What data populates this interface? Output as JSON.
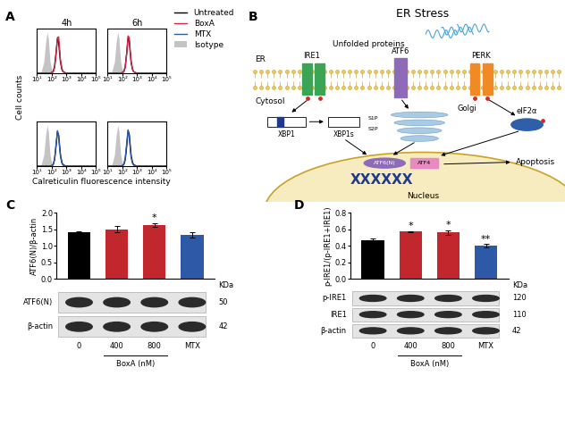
{
  "panel_labels": [
    "A",
    "B",
    "C",
    "D"
  ],
  "histogram_panel": {
    "xlabel": "Calreticulin fluorescence intensity",
    "ylabel": "Cell counts",
    "legend_entries": [
      "Untreated",
      "BoxA",
      "MTX",
      "Isotype"
    ]
  },
  "chart_data": [
    {
      "type": "line",
      "title": "4h",
      "log": "x",
      "tick_labels": "x",
      "x": [
        10,
        20,
        30,
        40,
        50,
        60,
        70,
        80,
        100,
        130,
        160,
        200,
        250,
        300,
        350,
        400,
        500,
        600,
        800,
        1000,
        2000,
        10000,
        100000
      ],
      "xlim": [
        10,
        100000
      ],
      "xticks": [
        {
          "value": 10,
          "label": "10¹"
        },
        {
          "value": 100,
          "label": "10²"
        },
        {
          "value": 1000,
          "label": "10³"
        },
        {
          "value": 10000,
          "label": "10⁴"
        },
        {
          "value": 100000,
          "label": "10⁵"
        }
      ],
      "ylim": [
        0,
        100
      ],
      "series": [
        {
          "name": "Isotype",
          "type": "area",
          "color": "#c4c4c4",
          "values": [
            0,
            3,
            25,
            70,
            92,
            80,
            50,
            25,
            8,
            2,
            0,
            0,
            0,
            0,
            0,
            0,
            0,
            0,
            0,
            0,
            0,
            0,
            0
          ]
        },
        {
          "name": "Untreated",
          "color": "#000000",
          "values": [
            0,
            0,
            0,
            0,
            0,
            0,
            0,
            0,
            1,
            4,
            15,
            45,
            78,
            70,
            45,
            25,
            8,
            3,
            1,
            0,
            0,
            0,
            0
          ]
        },
        {
          "name": "BoxA",
          "color": "#d6284b",
          "values": [
            0,
            0,
            0,
            0,
            0,
            0,
            0,
            0,
            1,
            3,
            12,
            40,
            80,
            82,
            55,
            30,
            10,
            4,
            1,
            0,
            0,
            0,
            0
          ]
        }
      ]
    },
    {
      "type": "line",
      "title": "6h",
      "log": "x",
      "tick_labels": "x",
      "x": [
        10,
        20,
        30,
        40,
        50,
        60,
        70,
        80,
        100,
        130,
        160,
        200,
        250,
        300,
        350,
        400,
        500,
        600,
        800,
        1000,
        2000,
        10000,
        100000
      ],
      "xlim": [
        10,
        100000
      ],
      "xticks": [
        {
          "value": 10,
          "label": "10¹"
        },
        {
          "value": 100,
          "label": "10²"
        },
        {
          "value": 1000,
          "label": "10³"
        },
        {
          "value": 10000,
          "label": "10⁴"
        },
        {
          "value": 100000,
          "label": "10⁵"
        }
      ],
      "ylim": [
        0,
        100
      ],
      "series": [
        {
          "name": "Isotype",
          "type": "area",
          "color": "#c4c4c4",
          "values": [
            0,
            3,
            25,
            70,
            92,
            80,
            50,
            25,
            8,
            2,
            0,
            0,
            0,
            0,
            0,
            0,
            0,
            0,
            0,
            0,
            0,
            0,
            0
          ]
        },
        {
          "name": "Untreated",
          "color": "#000000",
          "values": [
            0,
            0,
            0,
            0,
            0,
            0,
            0,
            0,
            1,
            4,
            14,
            44,
            80,
            72,
            46,
            24,
            8,
            3,
            1,
            0,
            0,
            0,
            0
          ]
        },
        {
          "name": "BoxA",
          "color": "#d6284b",
          "values": [
            0,
            0,
            0,
            0,
            0,
            0,
            0,
            0,
            1,
            3,
            12,
            42,
            84,
            80,
            50,
            28,
            9,
            3,
            1,
            0,
            0,
            0,
            0
          ]
        }
      ]
    },
    {
      "type": "line",
      "log": "x",
      "tick_labels": "x",
      "x": [
        10,
        20,
        30,
        40,
        50,
        60,
        70,
        80,
        100,
        130,
        160,
        200,
        250,
        300,
        350,
        400,
        500,
        600,
        800,
        1000,
        2000,
        10000,
        100000
      ],
      "xlim": [
        10,
        100000
      ],
      "xticks": [
        {
          "value": 10,
          "label": "10¹"
        },
        {
          "value": 100,
          "label": "10²"
        },
        {
          "value": 1000,
          "label": "10³"
        },
        {
          "value": 10000,
          "label": "10⁴"
        },
        {
          "value": 100000,
          "label": "10⁵"
        }
      ],
      "ylim": [
        0,
        100
      ],
      "series": [
        {
          "name": "Isotype",
          "type": "area",
          "color": "#c4c4c4",
          "values": [
            0,
            3,
            25,
            70,
            92,
            80,
            50,
            25,
            8,
            2,
            0,
            0,
            0,
            0,
            0,
            0,
            0,
            0,
            0,
            0,
            0,
            0,
            0
          ]
        },
        {
          "name": "Untreated",
          "color": "#000000",
          "values": [
            0,
            0,
            0,
            0,
            0,
            0,
            0,
            0,
            1,
            4,
            15,
            45,
            78,
            70,
            45,
            25,
            8,
            3,
            1,
            0,
            0,
            0,
            0
          ]
        },
        {
          "name": "MTX",
          "color": "#2a5caa",
          "values": [
            0,
            0,
            0,
            0,
            0,
            0,
            0,
            0,
            1,
            4,
            15,
            48,
            80,
            68,
            42,
            22,
            7,
            2,
            1,
            0,
            0,
            0,
            0
          ]
        }
      ]
    },
    {
      "type": "line",
      "log": "x",
      "tick_labels": "x",
      "x": [
        10,
        20,
        30,
        40,
        50,
        60,
        70,
        80,
        100,
        130,
        160,
        200,
        250,
        300,
        350,
        400,
        500,
        600,
        800,
        1000,
        2000,
        10000,
        100000
      ],
      "xlim": [
        10,
        100000
      ],
      "xticks": [
        {
          "value": 10,
          "label": "10¹"
        },
        {
          "value": 100,
          "label": "10²"
        },
        {
          "value": 1000,
          "label": "10³"
        },
        {
          "value": 10000,
          "label": "10⁴"
        },
        {
          "value": 100000,
          "label": "10⁵"
        }
      ],
      "ylim": [
        0,
        100
      ],
      "series": [
        {
          "name": "Isotype",
          "type": "area",
          "color": "#c4c4c4",
          "values": [
            0,
            3,
            25,
            70,
            92,
            80,
            50,
            25,
            8,
            2,
            0,
            0,
            0,
            0,
            0,
            0,
            0,
            0,
            0,
            0,
            0,
            0,
            0
          ]
        },
        {
          "name": "Untreated",
          "color": "#000000",
          "values": [
            0,
            0,
            0,
            0,
            0,
            0,
            0,
            0,
            1,
            4,
            14,
            44,
            80,
            72,
            46,
            24,
            8,
            3,
            1,
            0,
            0,
            0,
            0
          ]
        },
        {
          "name": "MTX",
          "color": "#2a5caa",
          "values": [
            0,
            0,
            0,
            0,
            0,
            0,
            0,
            0,
            1,
            5,
            18,
            50,
            82,
            66,
            40,
            20,
            6,
            2,
            1,
            0,
            0,
            0,
            0
          ]
        }
      ]
    },
    {
      "type": "bar",
      "tick_labels": "y",
      "categories": [
        "0",
        "400",
        "800",
        "MTX"
      ],
      "values": [
        1.4,
        1.5,
        1.63,
        1.33
      ],
      "errors": [
        0.03,
        0.1,
        0.06,
        0.08
      ],
      "significance": [
        null,
        null,
        "*",
        null
      ],
      "colors": [
        "#000000",
        "#c1272d",
        "#c1272d",
        "#2e59a7"
      ],
      "ylabel": "ATF6(N)/β-actin",
      "ylim": [
        0,
        2
      ],
      "yticks": [
        {
          "value": 0,
          "label": "0.0"
        },
        0.5,
        {
          "value": 1,
          "label": "1.0"
        },
        1.5,
        {
          "value": 2,
          "label": "2.0"
        }
      ],
      "xlabel": {
        "text": "BoxA (nM)",
        "categories": [
          "400",
          "800"
        ]
      },
      "blot": {
        "unit": "KDa",
        "rows": [
          {
            "label": "ATF6(N)",
            "kda": 50
          },
          {
            "label": "β-actin",
            "kda": 42
          }
        ]
      }
    },
    {
      "type": "bar",
      "tick_labels": "y",
      "categories": [
        "0",
        "400",
        "800",
        "MTX"
      ],
      "values": [
        0.47,
        0.57,
        0.56,
        0.4
      ],
      "errors": [
        0.02,
        0.01,
        0.03,
        0.02
      ],
      "significance": [
        null,
        "*",
        "*",
        "**"
      ],
      "colors": [
        "#000000",
        "#c1272d",
        "#c1272d",
        "#2e59a7"
      ],
      "ylabel": "p-IRE1/(p-IRE1+IRE1)",
      "ylim": [
        0,
        0.8
      ],
      "yticks": [
        {
          "value": 0,
          "label": "0.0"
        },
        0.2,
        0.4,
        0.6,
        0.8
      ],
      "xlabel": {
        "text": "BoxA (nM)",
        "categories": [
          "400",
          "800"
        ]
      },
      "blot": {
        "unit": "KDa",
        "rows": [
          {
            "label": "p-IRE1",
            "kda": 120
          },
          {
            "label": "IRE1",
            "kda": 110
          },
          {
            "label": "β-actin",
            "kda": 42
          }
        ]
      }
    }
  ],
  "diagram": {
    "title": "ER Stress",
    "unfolded": "Unfolded proteins",
    "compartments": {
      "er": "ER",
      "cytosol": "Cytosol",
      "golgi": "Golgi",
      "nucleus": "Nucleus"
    },
    "sensors": [
      "IRE1",
      "ATF6",
      "PERK"
    ],
    "xbp1": "XBP1",
    "xbp1s": "XBP1s",
    "proteases": [
      "S1P",
      "S2P"
    ],
    "eif2a": "eIF2α",
    "atf6n": "ATF6(N)",
    "atf4": "ATF4",
    "chromatin": "XXXXXX",
    "outcome": "Apoptosis"
  }
}
